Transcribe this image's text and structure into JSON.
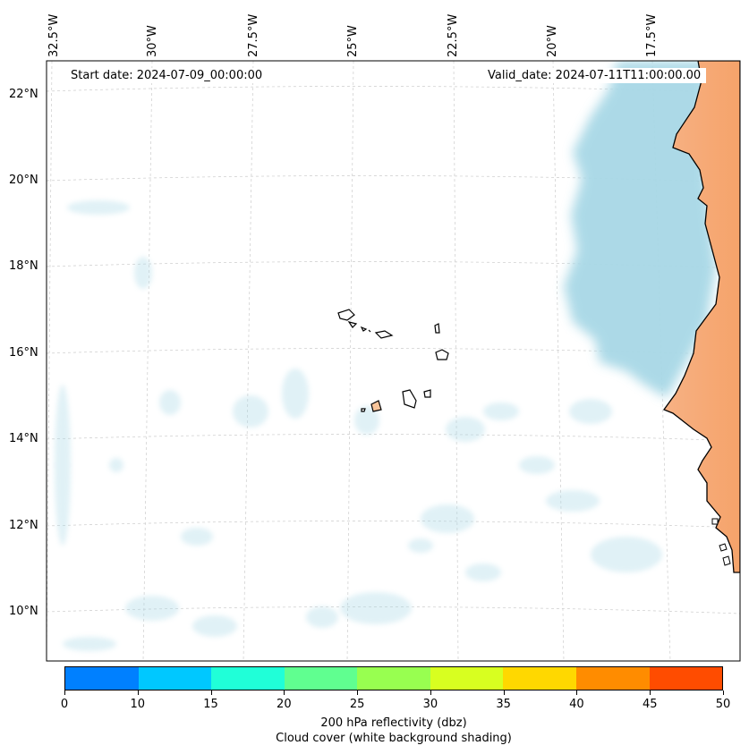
{
  "map": {
    "start_date": "Start date: 2024-07-09_00:00:00",
    "valid_date": "Valid_date: 2024-07-11T11:00:00.00",
    "lon_labels": [
      "32.5°W",
      "30°W",
      "27.5°W",
      "25°W",
      "22.5°W",
      "20°W",
      "17.5°W"
    ],
    "lat_labels": [
      "22°N",
      "20°N",
      "18°N",
      "16°N",
      "14°N",
      "12°N",
      "10°N"
    ],
    "colors": {
      "land": "#f5a36a",
      "cloud": "#a8d8e6",
      "coast": "#000000"
    }
  },
  "colorbar": {
    "ticks": [
      "0",
      "10",
      "15",
      "20",
      "25",
      "30",
      "35",
      "40",
      "45",
      "50"
    ],
    "colors": [
      "#0080ff",
      "#00c8ff",
      "#20ffd8",
      "#60ff90",
      "#98ff50",
      "#d8ff20",
      "#ffd800",
      "#ff8c00",
      "#ff4c00"
    ],
    "label": "200 hPa reflectivity (dbz)",
    "sublabel": "Cloud cover (white background shading)"
  }
}
